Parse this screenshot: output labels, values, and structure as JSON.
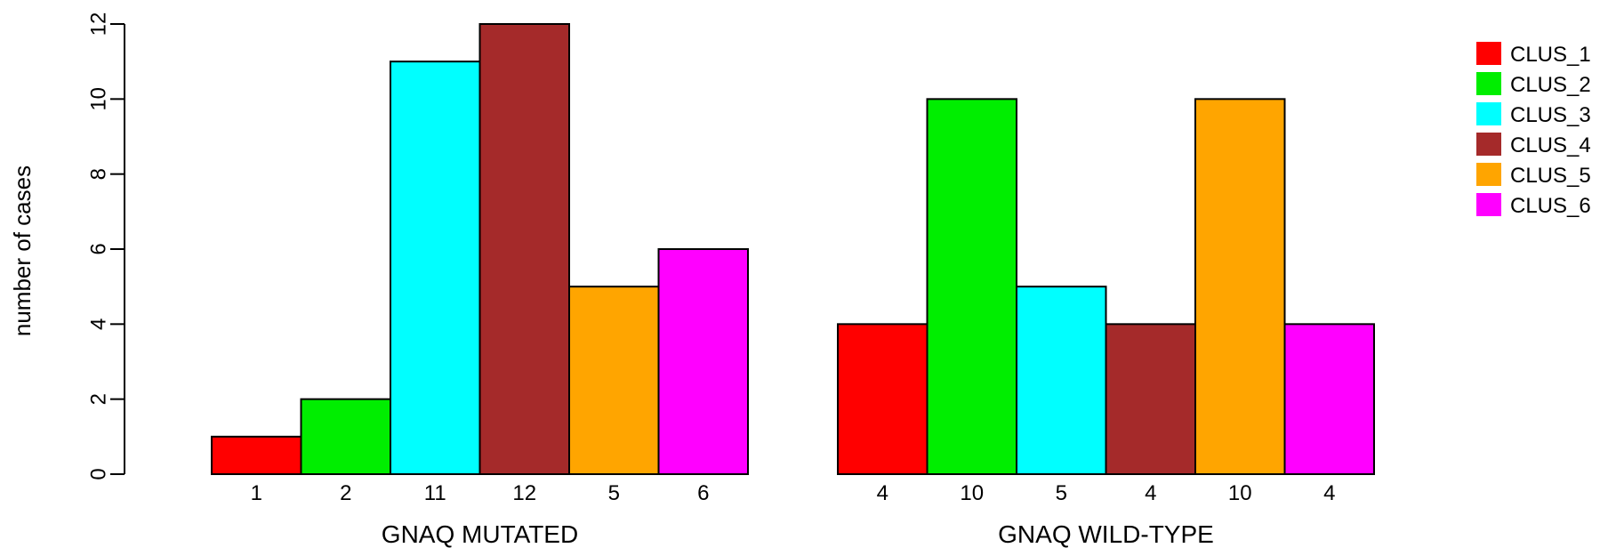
{
  "chart_data": {
    "type": "bar",
    "ylabel": "number of cases",
    "ylim": [
      0,
      12
    ],
    "y_ticks": [
      0,
      2,
      4,
      6,
      8,
      10,
      12
    ],
    "groups": [
      {
        "label": "GNAQ MUTATED",
        "values": [
          1,
          2,
          11,
          12,
          5,
          6
        ],
        "bar_labels": [
          "1",
          "2",
          "11",
          "12",
          "5",
          "6"
        ]
      },
      {
        "label": "GNAQ WILD-TYPE",
        "values": [
          4,
          10,
          5,
          4,
          10,
          4
        ],
        "bar_labels": [
          "4",
          "10",
          "5",
          "4",
          "10",
          "4"
        ]
      }
    ],
    "series": [
      {
        "name": "CLUS_1",
        "color": "#ff0000"
      },
      {
        "name": "CLUS_2",
        "color": "#00ee00"
      },
      {
        "name": "CLUS_3",
        "color": "#00ffff"
      },
      {
        "name": "CLUS_4",
        "color": "#a52a2a"
      },
      {
        "name": "CLUS_5",
        "color": "#ffa500"
      },
      {
        "name": "CLUS_6",
        "color": "#ff00ff"
      }
    ],
    "legend_position": "top-right",
    "grid": false
  }
}
